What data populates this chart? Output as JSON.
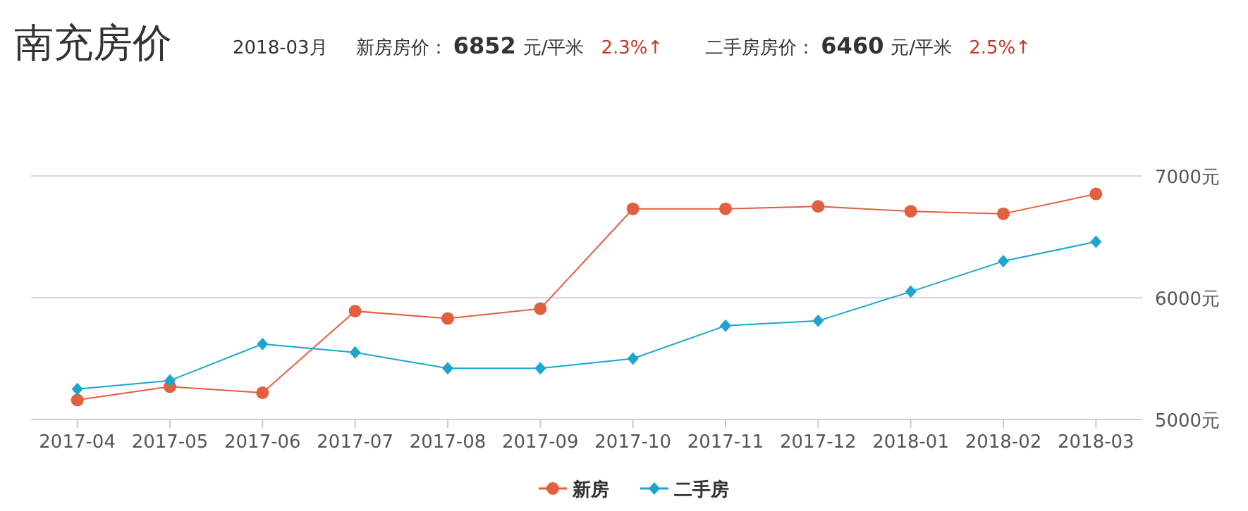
{
  "chart_data": {
    "type": "line",
    "title": "南充房价",
    "annotations": [
      "2018-03月",
      "新房房价：",
      "6852",
      "元/平米",
      "2.3%↑",
      "二手房房价：",
      "6460",
      "元/平米",
      "2.5%↑"
    ],
    "categories": [
      "2017-04",
      "2017-05",
      "2017-06",
      "2017-07",
      "2017-08",
      "2017-09",
      "2017-10",
      "2017-11",
      "2017-12",
      "2018-01",
      "2018-02",
      "2018-03"
    ],
    "series": [
      {
        "name": "新房",
        "color": "#e0603f",
        "marker": "circle",
        "values": [
          5160,
          5270,
          5220,
          5890,
          5830,
          5910,
          6730,
          6730,
          6750,
          6710,
          6690,
          6852
        ]
      },
      {
        "name": "二手房",
        "color": "#1ba5cf",
        "marker": "diamond",
        "values": [
          5250,
          5320,
          5620,
          5550,
          5420,
          5420,
          5500,
          5770,
          5810,
          6050,
          6300,
          6460
        ]
      }
    ],
    "ylim": [
      5000,
      7000
    ],
    "yticks": [
      {
        "value": 5000,
        "label": "5000元"
      },
      {
        "value": 6000,
        "label": "6000元"
      },
      {
        "value": 7000,
        "label": "7000元"
      }
    ],
    "grid": "y",
    "legend": "bottom"
  }
}
